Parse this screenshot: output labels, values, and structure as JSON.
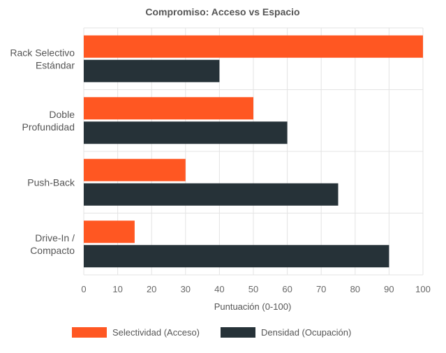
{
  "chart_data": {
    "type": "bar",
    "orientation": "horizontal",
    "title": "Compromiso: Acceso vs Espacio",
    "categories": [
      [
        "Rack Selectivo",
        "Estándar"
      ],
      [
        "Doble",
        "Profundidad"
      ],
      [
        "Push-Back"
      ],
      [
        "Drive-In /",
        "Compacto"
      ]
    ],
    "series": [
      {
        "name": "Selectividad (Acceso)",
        "values": [
          100,
          50,
          30,
          15
        ],
        "color": "#ff5722"
      },
      {
        "name": "Densidad (Ocupación)",
        "values": [
          40,
          60,
          75,
          90
        ],
        "color": "#263238"
      }
    ],
    "xlabel": "Puntuación (0-100)",
    "ylabel": "",
    "xlim": [
      0,
      100
    ],
    "xticks": [
      "0",
      "10",
      "20",
      "30",
      "40",
      "50",
      "60",
      "70",
      "80",
      "90",
      "100"
    ],
    "grid": true,
    "legend_position": "bottom"
  }
}
